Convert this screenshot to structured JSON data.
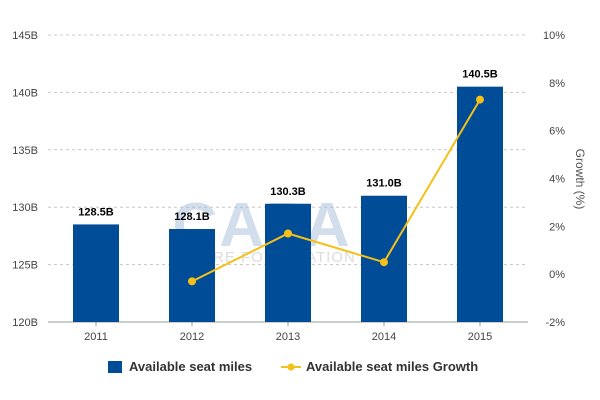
{
  "chart_data": {
    "type": "bar",
    "categories": [
      "2011",
      "2012",
      "2013",
      "2014",
      "2015"
    ],
    "series": [
      {
        "name": "Available seat miles",
        "kind": "bar",
        "axis": "left",
        "values": [
          128.5,
          128.1,
          130.3,
          131.0,
          140.5
        ],
        "labels": [
          "128.5B",
          "128.1B",
          "130.3B",
          "131.0B",
          "140.5B"
        ],
        "color": "#004C97"
      },
      {
        "name": "Available seat miles Growth",
        "kind": "line",
        "axis": "right",
        "values": [
          null,
          -0.3,
          1.7,
          0.5,
          7.3
        ],
        "color": "#F5C018"
      }
    ],
    "y_left": {
      "range": [
        120,
        145
      ],
      "ticks": [
        "120B",
        "125B",
        "130B",
        "135B",
        "140B",
        "145B"
      ],
      "tick_values": [
        120,
        125,
        130,
        135,
        140,
        145
      ]
    },
    "y_right": {
      "label": "Growth (%)",
      "range": [
        -2,
        10
      ],
      "ticks": [
        "-2%",
        "0%",
        "2%",
        "4%",
        "6%",
        "8%",
        "10%"
      ],
      "tick_values": [
        -2,
        0,
        2,
        4,
        6,
        8,
        10
      ]
    },
    "grid": "horizontal dashed",
    "legend": "bottom",
    "watermark": "CAPA CENTRE FOR AVIATION"
  }
}
